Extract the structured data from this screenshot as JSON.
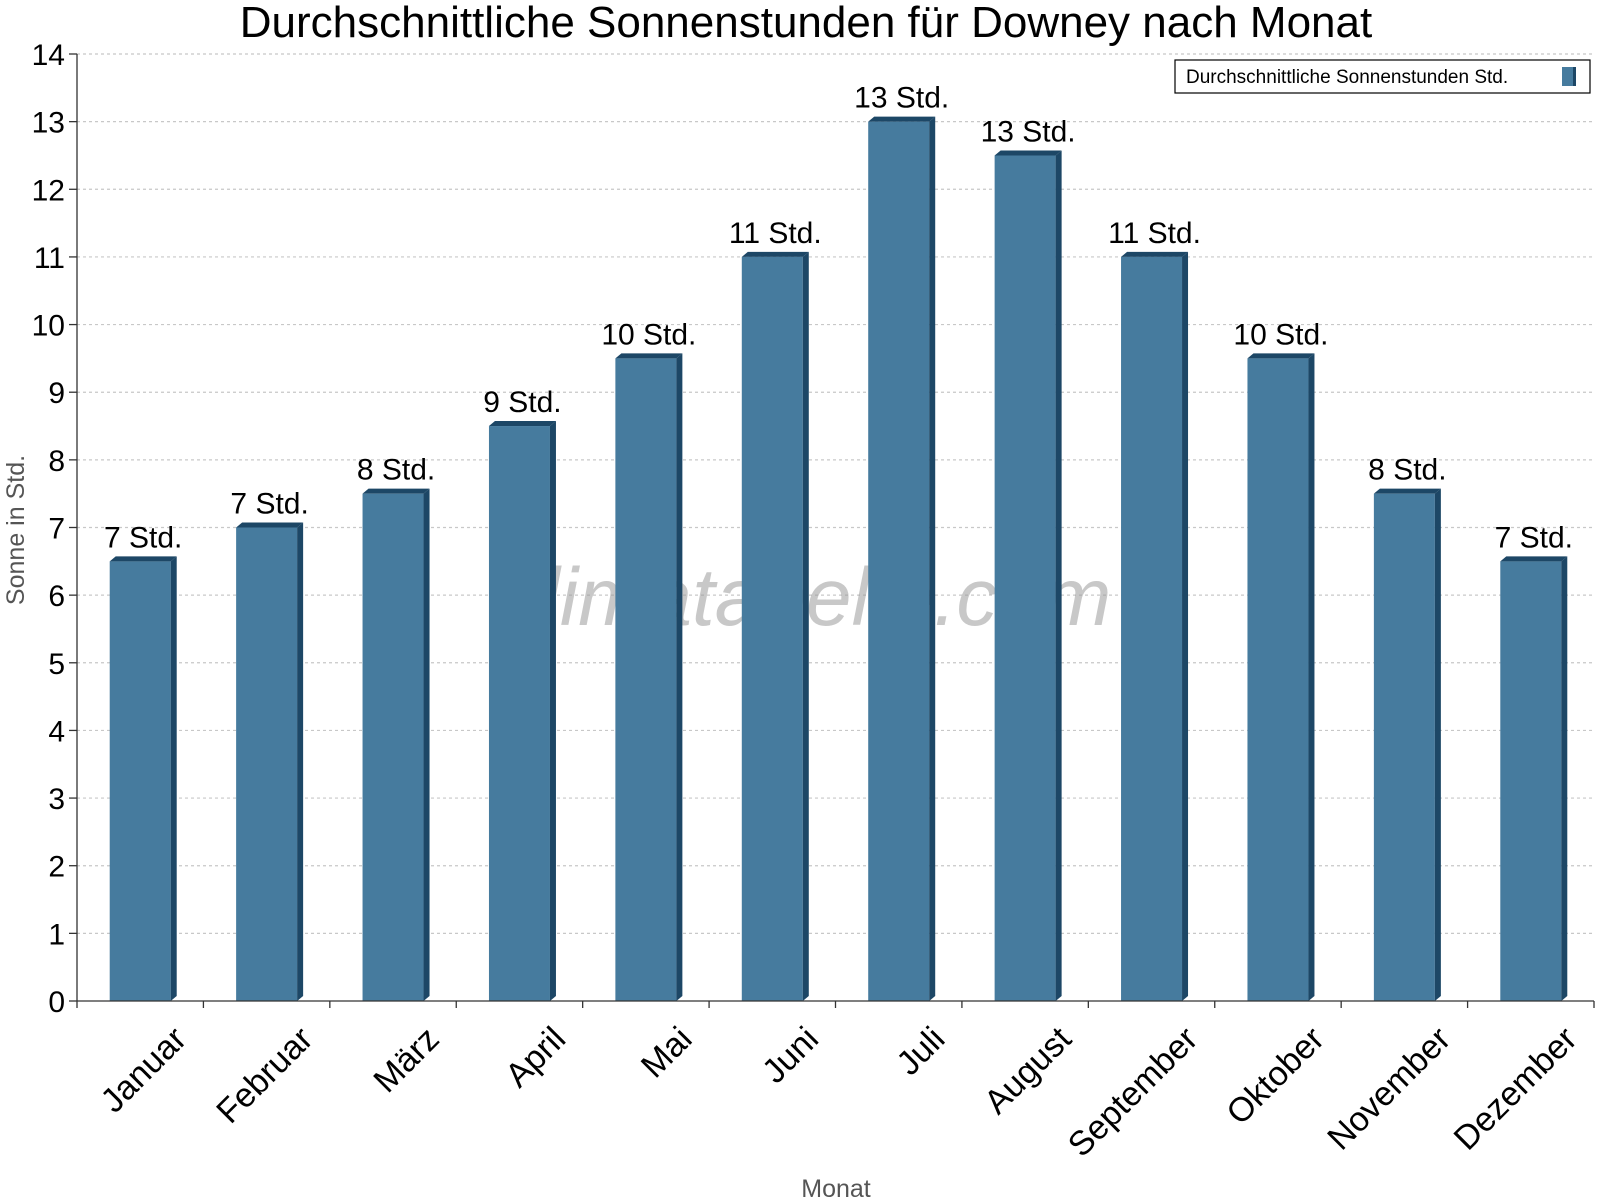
{
  "chart_data": {
    "type": "bar",
    "title": "Durchschnittliche Sonnenstunden für Downey nach Monat",
    "xlabel": "Monat",
    "ylabel": "Sonne in Std.",
    "ylim": [
      0,
      14
    ],
    "yticks": [
      0,
      1,
      2,
      3,
      4,
      5,
      6,
      7,
      8,
      9,
      10,
      11,
      12,
      13,
      14
    ],
    "grid": true,
    "legend_position": "top-right",
    "categories": [
      "Januar",
      "Februar",
      "März",
      "April",
      "Mai",
      "Juni",
      "Juli",
      "August",
      "September",
      "Oktober",
      "November",
      "Dezember"
    ],
    "series": [
      {
        "name": "Durchschnittliche Sonnenstunden Std.",
        "color": "#467b9e",
        "values": [
          6.5,
          7.0,
          7.5,
          8.5,
          9.5,
          11.0,
          13.0,
          12.5,
          11.0,
          9.5,
          7.5,
          6.5
        ],
        "data_labels": [
          "7 Std.",
          "7 Std.",
          "8 Std.",
          "9 Std.",
          "10 Std.",
          "11 Std.",
          "13 Std.",
          "13 Std.",
          "11 Std.",
          "10 Std.",
          "8 Std.",
          "7 Std."
        ]
      }
    ],
    "watermark": "klimatabelle.com"
  }
}
